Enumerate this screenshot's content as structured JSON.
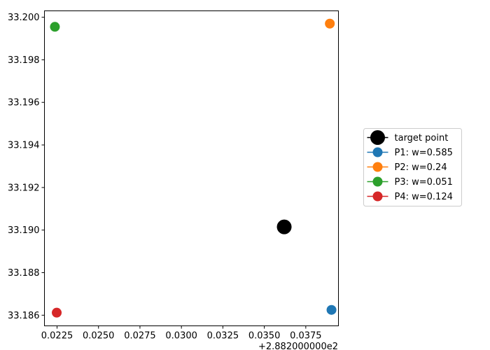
{
  "chart_data": {
    "type": "scatter",
    "title": "",
    "xlabel": "",
    "ylabel": "",
    "x_offset_label": "+2.882000000e2",
    "xlim": [
      0.02174,
      0.03947
    ],
    "ylim": [
      33.1855,
      33.2003
    ],
    "xticks": [
      0.0225,
      0.025,
      0.0275,
      0.03,
      0.0325,
      0.035,
      0.0375
    ],
    "xtick_labels": [
      "0.0225",
      "0.0250",
      "0.0275",
      "0.0300",
      "0.0325",
      "0.0350",
      "0.0375"
    ],
    "yticks": [
      33.186,
      33.188,
      33.19,
      33.192,
      33.194,
      33.196,
      33.198,
      33.2
    ],
    "ytick_labels": [
      "33.186",
      "33.188",
      "33.190",
      "33.192",
      "33.194",
      "33.196",
      "33.198",
      "33.200"
    ],
    "grid": false,
    "legend_position": "right-center",
    "series": [
      {
        "name": "target point",
        "x": 0.0362,
        "y": 33.19015,
        "color": "#000000",
        "marker_size": "large"
      },
      {
        "name": "P1: w=0.585",
        "x": 0.03905,
        "y": 33.18625,
        "color": "#1f77b4",
        "marker_size": "normal"
      },
      {
        "name": "P2: w=0.24",
        "x": 0.03895,
        "y": 33.1997,
        "color": "#ff7f0e",
        "marker_size": "normal"
      },
      {
        "name": "P3: w=0.051",
        "x": 0.02237,
        "y": 33.19955,
        "color": "#2ca02c",
        "marker_size": "normal"
      },
      {
        "name": "P4: w=0.124",
        "x": 0.02248,
        "y": 33.18612,
        "color": "#d62728",
        "marker_size": "normal"
      }
    ]
  }
}
